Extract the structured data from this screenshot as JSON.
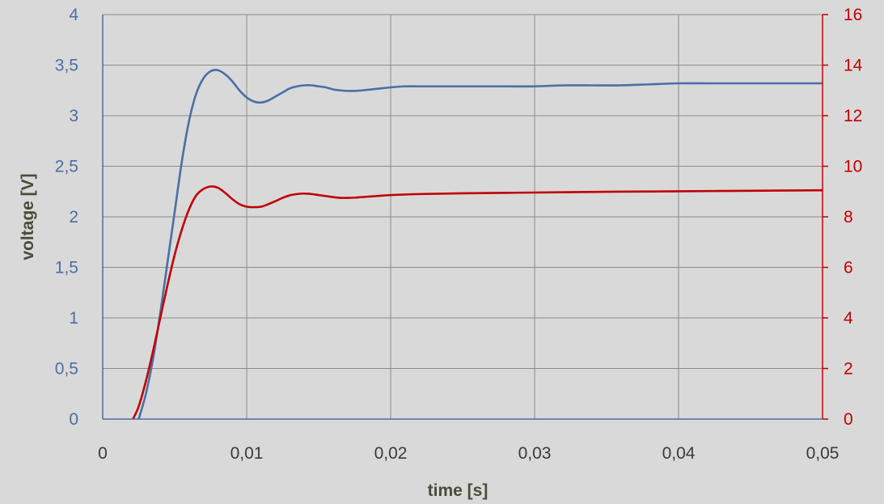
{
  "chart_data": {
    "type": "line",
    "xlabel": "time [s]",
    "ylabel": "voltage [V]",
    "xlim": [
      0,
      0.05
    ],
    "ylim_left": [
      0,
      4
    ],
    "ylim_right": [
      0,
      16
    ],
    "grid": true,
    "x_ticks": [
      "0",
      "0,01",
      "0,02",
      "0,03",
      "0,04",
      "0,05"
    ],
    "x_tick_values": [
      0,
      0.01,
      0.02,
      0.03,
      0.04,
      0.05
    ],
    "y_left_ticks": [
      "0",
      "0,5",
      "1",
      "1,5",
      "2",
      "2,5",
      "3",
      "3,5",
      "4"
    ],
    "y_left_tick_values": [
      0,
      0.5,
      1,
      1.5,
      2,
      2.5,
      3,
      3.5,
      4
    ],
    "y_right_ticks": [
      "0",
      "2",
      "4",
      "6",
      "8",
      "10",
      "12",
      "14",
      "16"
    ],
    "y_right_tick_values": [
      0,
      2,
      4,
      6,
      8,
      10,
      12,
      14,
      16
    ],
    "colors": {
      "background": "#d9d9d9",
      "grid": "#8c8c8c",
      "left_axis": "#4a6fa5",
      "right_axis": "#c00000"
    },
    "series": [
      {
        "axis": "left",
        "color": "#4a6fa5",
        "x": [
          0.0025,
          0.003,
          0.0035,
          0.004,
          0.0045,
          0.005,
          0.0055,
          0.006,
          0.0065,
          0.007,
          0.0075,
          0.008,
          0.0085,
          0.009,
          0.0095,
          0.01,
          0.0105,
          0.011,
          0.0115,
          0.012,
          0.0125,
          0.013,
          0.0135,
          0.014,
          0.0145,
          0.015,
          0.0155,
          0.016,
          0.0165,
          0.017,
          0.0175,
          0.018,
          0.019,
          0.02,
          0.021,
          0.022,
          0.024,
          0.026,
          0.028,
          0.03,
          0.032,
          0.034,
          0.036,
          0.038,
          0.04,
          0.042,
          0.044,
          0.046,
          0.048,
          0.05
        ],
        "y": [
          0.0,
          0.25,
          0.6,
          1.05,
          1.55,
          2.05,
          2.55,
          2.95,
          3.22,
          3.37,
          3.44,
          3.45,
          3.41,
          3.34,
          3.25,
          3.18,
          3.14,
          3.13,
          3.15,
          3.19,
          3.23,
          3.27,
          3.29,
          3.3,
          3.3,
          3.29,
          3.28,
          3.26,
          3.25,
          3.245,
          3.245,
          3.25,
          3.265,
          3.28,
          3.29,
          3.29,
          3.29,
          3.29,
          3.29,
          3.29,
          3.3,
          3.3,
          3.3,
          3.31,
          3.32,
          3.32,
          3.32,
          3.32,
          3.32,
          3.32
        ]
      },
      {
        "axis": "right",
        "color": "#c00000",
        "x": [
          0.0021,
          0.0025,
          0.003,
          0.0035,
          0.004,
          0.0045,
          0.005,
          0.0055,
          0.006,
          0.0065,
          0.007,
          0.0075,
          0.008,
          0.0085,
          0.009,
          0.0095,
          0.01,
          0.0105,
          0.011,
          0.0115,
          0.012,
          0.0125,
          0.013,
          0.0135,
          0.014,
          0.0145,
          0.015,
          0.0155,
          0.016,
          0.0165,
          0.017,
          0.0175,
          0.018,
          0.019,
          0.02,
          0.022,
          0.025,
          0.03,
          0.035,
          0.04,
          0.045,
          0.05
        ],
        "y": [
          0.0,
          0.5,
          1.5,
          2.7,
          4.0,
          5.3,
          6.5,
          7.5,
          8.3,
          8.85,
          9.1,
          9.2,
          9.15,
          8.95,
          8.7,
          8.5,
          8.4,
          8.38,
          8.4,
          8.5,
          8.62,
          8.75,
          8.85,
          8.9,
          8.92,
          8.9,
          8.86,
          8.82,
          8.78,
          8.75,
          8.75,
          8.76,
          8.78,
          8.82,
          8.86,
          8.9,
          8.93,
          8.96,
          8.99,
          9.01,
          9.03,
          9.05
        ]
      }
    ]
  }
}
